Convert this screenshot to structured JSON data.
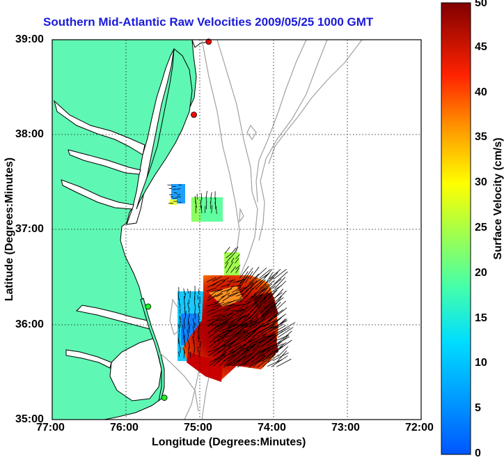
{
  "title": "Southern Mid-Atlantic Raw Velocities 2009/05/25 1000 GMT",
  "xlabel": "Longitude (Degrees:Minutes)",
  "ylabel": "Latitude (Degrees:Minutes)",
  "colorbar": {
    "label": "Surface Velocity (cm/s)",
    "units": "cm/s",
    "range": [
      0,
      50
    ],
    "ticks": [
      "0",
      "5",
      "10",
      "15",
      "20",
      "25",
      "30",
      "35",
      "40",
      "45",
      "50"
    ]
  },
  "axes": {
    "lon_ticks": [
      "77:00",
      "76:00",
      "75:00",
      "74:00",
      "73:00",
      "72:00"
    ],
    "lat_ticks": [
      "39:00",
      "38:00",
      "37:00",
      "36:00",
      "35:00"
    ],
    "lon_range": [
      -77,
      -72
    ],
    "lat_range": [
      35,
      39
    ],
    "grid": "dotted"
  },
  "colors": {
    "land": "#5ff7b4",
    "water": "#ffffff",
    "bathymetry": "#a0a0a0",
    "title": "#1a1adb",
    "station_red": "#ff0000",
    "station_green": "#22ee22"
  },
  "stations": [
    {
      "color": "red",
      "lon": -74.88,
      "lat": 38.98
    },
    {
      "color": "red",
      "lon": -75.08,
      "lat": 38.21
    },
    {
      "color": "green",
      "lon": -75.7,
      "lat": 36.19
    },
    {
      "color": "green",
      "lon": -75.48,
      "lat": 35.23
    }
  ]
}
